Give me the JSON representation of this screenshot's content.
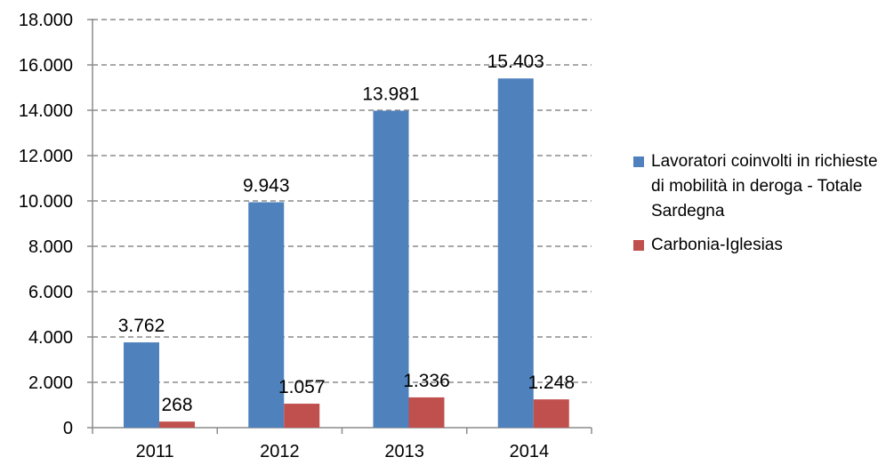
{
  "chart_data": {
    "type": "bar",
    "categories": [
      "2011",
      "2012",
      "2013",
      "2014"
    ],
    "series": [
      {
        "name": "Lavoratori coinvolti in richieste di mobilità in deroga - Totale Sardegna",
        "values": [
          3762,
          9943,
          13981,
          15403
        ],
        "labels": [
          "3.762",
          "9.943",
          "13.981",
          "15.403"
        ],
        "color": "#4F81BD"
      },
      {
        "name": "Carbonia-Iglesias",
        "values": [
          268,
          1057,
          1336,
          1248
        ],
        "labels": [
          "268",
          "1.057",
          "1.336",
          "1.248"
        ],
        "color": "#C0504D"
      }
    ],
    "y_ticks": [
      0,
      2000,
      4000,
      6000,
      8000,
      10000,
      12000,
      14000,
      16000,
      18000
    ],
    "y_tick_labels": [
      "0",
      "2.000",
      "4.000",
      "6.000",
      "8.000",
      "10.000",
      "12.000",
      "14.000",
      "16.000",
      "18.000"
    ],
    "ylim": [
      0,
      18000
    ],
    "title": "",
    "xlabel": "",
    "ylabel": "",
    "grid": "horizontal dashed",
    "legend_position": "right"
  }
}
